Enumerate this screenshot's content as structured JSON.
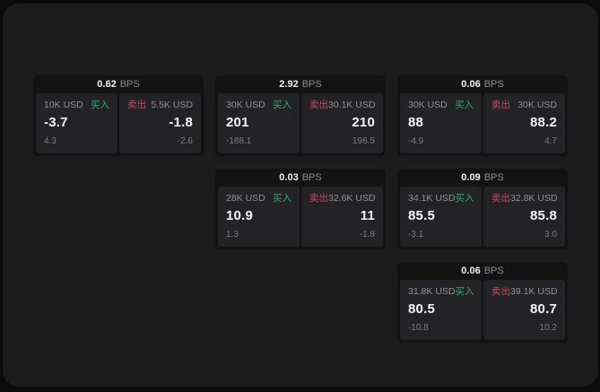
{
  "labels": {
    "bps_unit": "BPS",
    "buy": "买入",
    "sell": "卖出"
  },
  "colors": {
    "buy_green": "#35a873",
    "sell_red": "#c4495f",
    "window_bg": "#1c1c1d",
    "card_bg": "#131314",
    "panel_bg": "#232326"
  },
  "cards": [
    {
      "bps": "0.62",
      "grid": {
        "column": 1,
        "row": 1
      },
      "buy": {
        "amount": "10K USD",
        "price": "-3.7",
        "delta": "4.3"
      },
      "sell": {
        "amount": "5.5K USD",
        "price": "-1.8",
        "delta": "-2.6"
      }
    },
    {
      "bps": "2.92",
      "grid": {
        "column": 2,
        "row": 1
      },
      "buy": {
        "amount": "30K USD",
        "price": "201",
        "delta": "-188.1"
      },
      "sell": {
        "amount": "30.1K USD",
        "price": "210",
        "delta": "196.5"
      }
    },
    {
      "bps": "0.06",
      "grid": {
        "column": 3,
        "row": 1
      },
      "buy": {
        "amount": "30K USD",
        "price": "88",
        "delta": "-4.9"
      },
      "sell": {
        "amount": "30K USD",
        "price": "88.2",
        "delta": "4.7"
      }
    },
    {
      "bps": "0.03",
      "grid": {
        "column": 2,
        "row": 2
      },
      "buy": {
        "amount": "28K USD",
        "price": "10.9",
        "delta": "1.3"
      },
      "sell": {
        "amount": "32.6K USD",
        "price": "11",
        "delta": "-1.8"
      }
    },
    {
      "bps": "0.09",
      "grid": {
        "column": 3,
        "row": 2
      },
      "buy": {
        "amount": "34.1K USD",
        "price": "85.5",
        "delta": "-3.1"
      },
      "sell": {
        "amount": "32.8K USD",
        "price": "85.8",
        "delta": "3.0"
      }
    },
    {
      "bps": "0.06",
      "grid": {
        "column": 3,
        "row": 3
      },
      "buy": {
        "amount": "31.8K USD",
        "price": "80.5",
        "delta": "-10.8"
      },
      "sell": {
        "amount": "39.1K USD",
        "price": "80.7",
        "delta": "10.2"
      }
    }
  ]
}
